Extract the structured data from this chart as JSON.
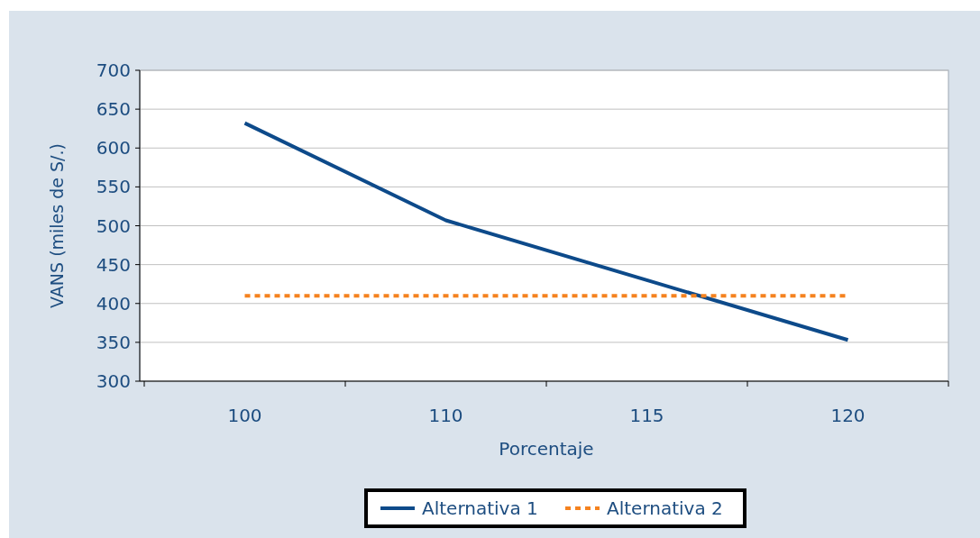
{
  "chart_data": {
    "type": "line",
    "xlabel": "Porcentaje",
    "ylabel": "VANS (miles de S/.)",
    "categories": [
      "100",
      "110",
      "115",
      "120"
    ],
    "series": [
      {
        "name": "Alternativa 1",
        "color": "#0d4a8a",
        "values": [
          632,
          507,
          430,
          353
        ],
        "line_style": "solid"
      },
      {
        "name": "Alternativa 2",
        "color": "#f5821f",
        "values": [
          410,
          410,
          410,
          410
        ],
        "line_style": "dotted"
      }
    ],
    "ylim": [
      300,
      700
    ],
    "yticks": [
      300,
      350,
      400,
      450,
      500,
      550,
      600,
      650,
      700
    ],
    "grid": "y",
    "legend": "bottom",
    "marker": "none"
  }
}
